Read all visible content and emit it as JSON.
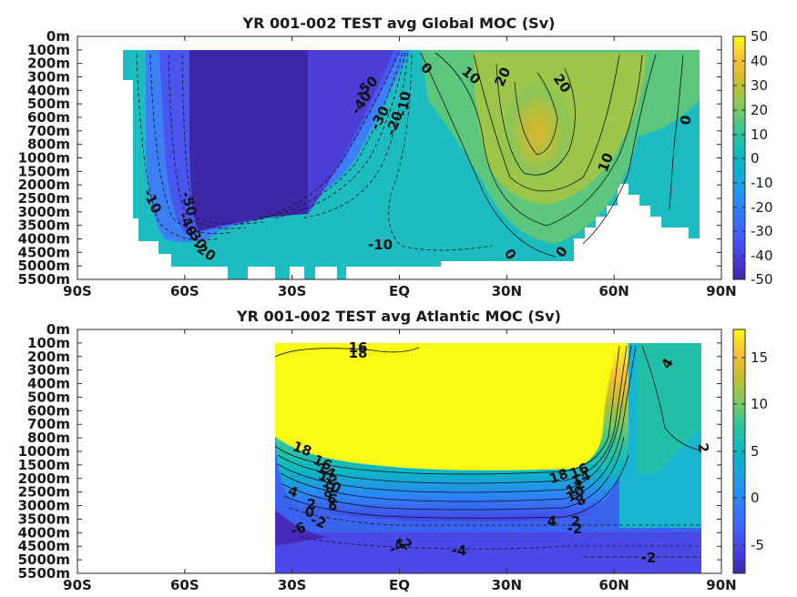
{
  "chart_data": [
    {
      "type": "heatmap",
      "title": "YR 001-002 TEST avg  Global MOC (Sv)",
      "xlabel": "",
      "ylabel": "",
      "x_ticks": [
        "90S",
        "60S",
        "30S",
        "EQ",
        "30N",
        "60N",
        "90N"
      ],
      "y_ticks": [
        "0m",
        "100m",
        "200m",
        "300m",
        "400m",
        "500m",
        "600m",
        "700m",
        "800m",
        "1000m",
        "1500m",
        "2000m",
        "2500m",
        "3000m",
        "3500m",
        "4000m",
        "4500m",
        "5000m",
        "5500m"
      ],
      "colorbar_ticks": [
        "50",
        "40",
        "30",
        "20",
        "10",
        "0",
        "-10",
        "-20",
        "-30",
        "-40",
        "-50"
      ],
      "clim": [
        -50,
        50
      ],
      "colormap": "parula",
      "contour_labels": [
        "-50",
        "-40",
        "-30",
        "-20",
        "-10",
        "0",
        "10",
        "20",
        "20",
        "10",
        "0",
        "-10",
        "-10",
        "-50",
        "-40",
        "-30",
        "-20",
        "0",
        "0"
      ]
    },
    {
      "type": "heatmap",
      "title": "YR 001-002 TEST avg  Atlantic MOC (Sv)",
      "xlabel": "",
      "ylabel": "",
      "x_ticks": [
        "90S",
        "60S",
        "30S",
        "EQ",
        "30N",
        "60N",
        "90N"
      ],
      "y_ticks": [
        "0m",
        "100m",
        "200m",
        "300m",
        "400m",
        "500m",
        "600m",
        "700m",
        "800m",
        "1000m",
        "1500m",
        "2000m",
        "2500m",
        "3000m",
        "3500m",
        "4000m",
        "4500m",
        "5000m",
        "5500m"
      ],
      "colorbar_ticks": [
        "15",
        "10",
        "5",
        "0",
        "-5"
      ],
      "clim": [
        -8,
        18
      ],
      "colormap": "parula",
      "contour_labels": [
        "16",
        "18",
        "18",
        "16",
        "14",
        "12",
        "10",
        "18",
        "16",
        "14",
        "12",
        "10",
        "8",
        "6",
        "4",
        "2",
        "0",
        "-2",
        "-6",
        "4",
        "2",
        "-2",
        "-4",
        "-4",
        "-2",
        "-2",
        "4",
        "2",
        "8",
        "6"
      ]
    }
  ]
}
